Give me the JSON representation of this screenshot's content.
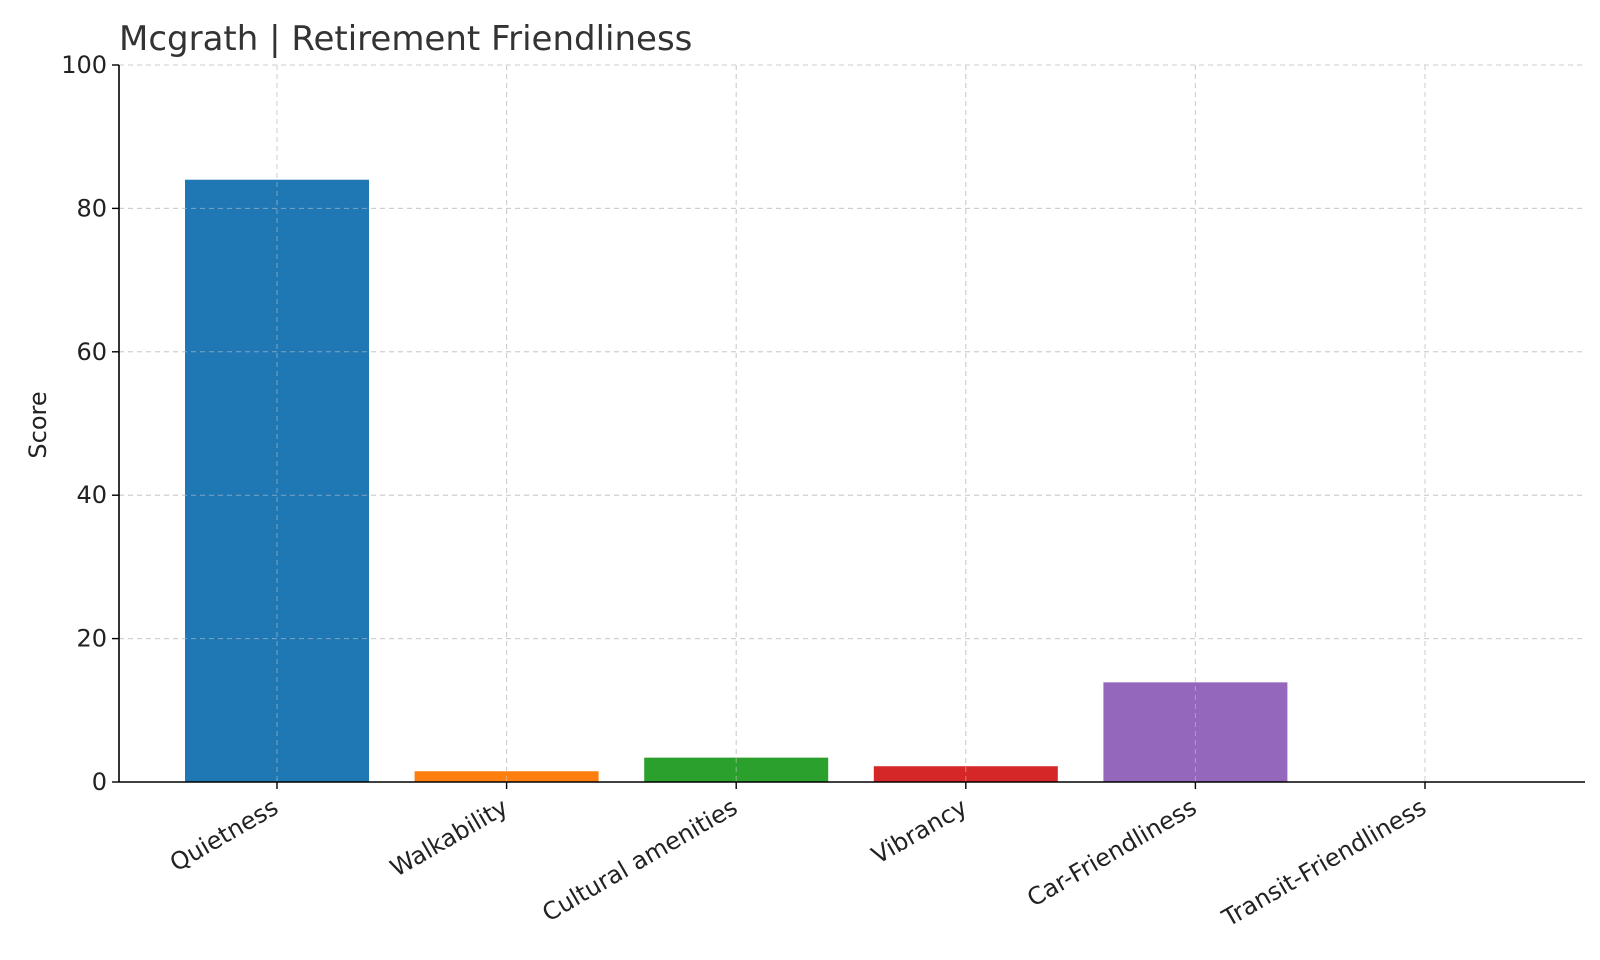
{
  "chart_data": {
    "type": "bar",
    "title": "Mcgrath | Retirement Friendliness",
    "xlabel": "",
    "ylabel": "Score",
    "ylim": [
      0,
      100
    ],
    "yticks": [
      0,
      20,
      40,
      60,
      80,
      100
    ],
    "categories": [
      "Quietness",
      "Walkability",
      "Cultural amenities",
      "Vibrancy",
      "Car-Friendliness",
      "Transit-Friendliness"
    ],
    "values": [
      84,
      1.5,
      3.4,
      2.2,
      13.9,
      0
    ],
    "colors": [
      "#1f77b4",
      "#ff7f0e",
      "#2ca02c",
      "#d62728",
      "#9467bd",
      "#8c564b"
    ],
    "grid": true,
    "legend": "none"
  }
}
